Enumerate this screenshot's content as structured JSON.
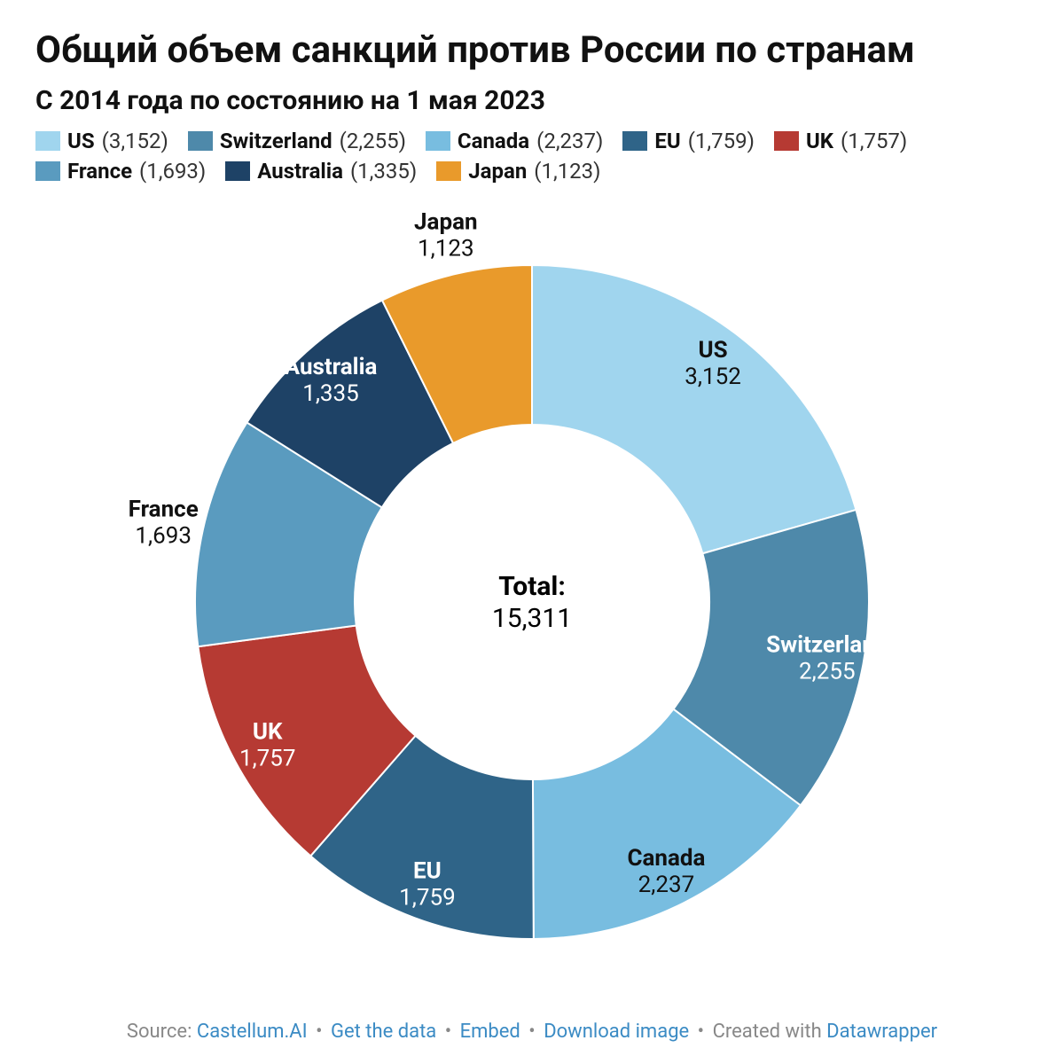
{
  "header": {
    "title": "Общий объем санкций против России по странам",
    "subtitle": "С 2014 года по состоянию на 1 мая 2023"
  },
  "chart": {
    "type": "donut",
    "background_color": "#ffffff",
    "inner_radius": 200,
    "outer_radius": 380,
    "size": 900,
    "stroke": "#ffffff",
    "stroke_width": 2,
    "center_label": "Total:",
    "center_value": "15,311",
    "label_radius_factor": 0.77,
    "outside_radius_factor": 1.12,
    "series": [
      {
        "name": "US",
        "value": 3152,
        "display": "3,152",
        "color": "#a0d5ee",
        "text": "dark"
      },
      {
        "name": "Switzerland",
        "value": 2255,
        "display": "2,255",
        "color": "#4e89aa",
        "text": "light"
      },
      {
        "name": "Canada",
        "value": 2237,
        "display": "2,237",
        "color": "#78bde0",
        "text": "dark"
      },
      {
        "name": "EU",
        "value": 1759,
        "display": "1,759",
        "color": "#2f6488",
        "text": "light"
      },
      {
        "name": "UK",
        "value": 1757,
        "display": "1,757",
        "color": "#b63a33",
        "text": "light"
      },
      {
        "name": "France",
        "value": 1693,
        "display": "1,693",
        "color": "#5a9bbf",
        "text": "dark",
        "outside": true
      },
      {
        "name": "Australia",
        "value": 1335,
        "display": "1,335",
        "color": "#1e4266",
        "text": "light"
      },
      {
        "name": "Japan",
        "value": 1123,
        "display": "1,123",
        "color": "#e99a2b",
        "text": "dark",
        "outside": true
      }
    ]
  },
  "footer": {
    "source_label": "Source:",
    "links": [
      "Castellum.AI",
      "Get the data",
      "Embed",
      "Download image"
    ],
    "created_with": "Created with",
    "tool": "Datawrapper"
  },
  "style": {
    "title_fontsize": 42,
    "subtitle_fontsize": 30,
    "legend_fontsize": 24,
    "slice_label_fontsize": 26,
    "center_fontsize": 30,
    "footer_fontsize": 22,
    "link_color": "#3b8bc4",
    "muted_color": "#888888",
    "text_color": "#111111"
  }
}
